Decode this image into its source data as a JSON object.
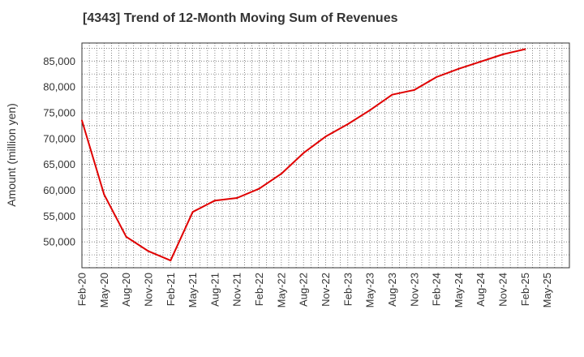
{
  "chart_data": {
    "type": "line",
    "title": "[4343]  Trend of 12-Month Moving Sum of Revenues",
    "xlabel": "",
    "ylabel": "Amount (million yen)",
    "ylim": [
      45000,
      88500
    ],
    "yticks": [
      "50,000",
      "55,000",
      "60,000",
      "65,000",
      "70,000",
      "75,000",
      "80,000",
      "85,000"
    ],
    "ytick_values": [
      50000,
      55000,
      60000,
      65000,
      70000,
      75000,
      80000,
      85000
    ],
    "xticks": [
      "Feb-20",
      "May-20",
      "Aug-20",
      "Nov-20",
      "Feb-21",
      "May-21",
      "Aug-21",
      "Nov-21",
      "Feb-22",
      "May-22",
      "Aug-22",
      "Nov-22",
      "Feb-23",
      "May-23",
      "Aug-23",
      "Nov-23",
      "Feb-24",
      "May-24",
      "Aug-24",
      "Nov-24",
      "Feb-25",
      "May-25"
    ],
    "grid": true,
    "color": "#e00000",
    "series": [
      {
        "x": [
          "Feb-20",
          "May-20",
          "Aug-20",
          "Nov-20",
          "Feb-21",
          "May-21",
          "Aug-21",
          "Nov-21",
          "Feb-22",
          "May-22",
          "Aug-22",
          "Nov-22",
          "Feb-23",
          "May-23",
          "Aug-23",
          "Nov-23",
          "Feb-24",
          "May-24",
          "Aug-24",
          "Nov-24",
          "Feb-25"
        ],
        "values": [
          73500,
          59200,
          51000,
          48200,
          46400,
          55800,
          58000,
          58500,
          60300,
          63200,
          67200,
          70400,
          72800,
          75500,
          78500,
          79400,
          81900,
          83500,
          84900,
          86300,
          87300
        ]
      }
    ]
  }
}
